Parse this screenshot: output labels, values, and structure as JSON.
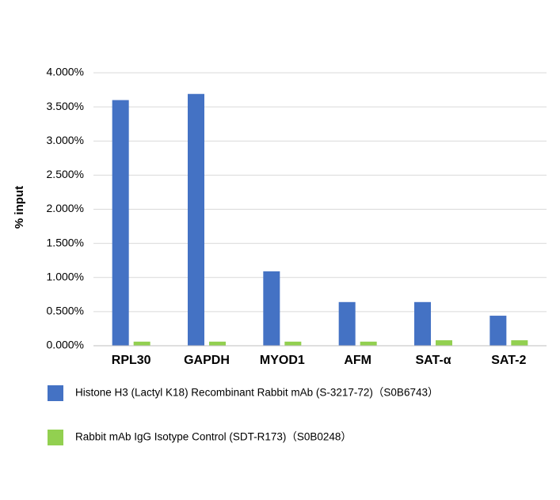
{
  "chart_data": {
    "type": "bar",
    "y_label": "% input",
    "categories": [
      "RPL30",
      "GAPDH",
      "MYOD1",
      "AFM",
      "SAT-α",
      "SAT-2"
    ],
    "series": [
      {
        "name": "Histone H3 (Lactyl K18) Recombinant Rabbit mAb (S-3217-72)（S0B6743）",
        "color": "#4472c4",
        "values": [
          3.6,
          3.69,
          1.09,
          0.64,
          0.64,
          0.44
        ]
      },
      {
        "name": "Rabbit mAb IgG Isotype Control (SDT-R173)（S0B0248）",
        "color": "#92d050",
        "values": [
          0.06,
          0.06,
          0.06,
          0.06,
          0.08,
          0.08
        ]
      }
    ],
    "ylim": [
      0,
      4
    ],
    "yticks": [
      {
        "value": 0,
        "label": "0.000%"
      },
      {
        "value": 0.5,
        "label": "0.500%"
      },
      {
        "value": 1,
        "label": "1.000%"
      },
      {
        "value": 1.5,
        "label": "1.500%"
      },
      {
        "value": 2,
        "label": "2.000%"
      },
      {
        "value": 2.5,
        "label": "2.500%"
      },
      {
        "value": 3,
        "label": "3.000%"
      },
      {
        "value": 3.5,
        "label": "3.500%"
      },
      {
        "value": 4,
        "label": "4.000%"
      }
    ],
    "grid": true
  }
}
